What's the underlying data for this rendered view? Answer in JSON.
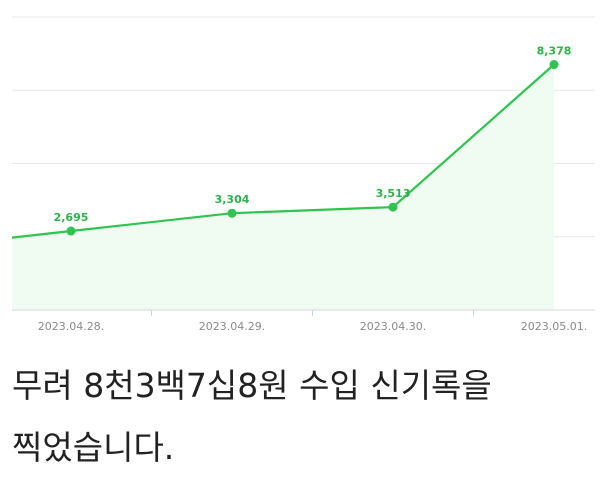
{
  "chart_data": {
    "type": "area",
    "title": "",
    "xlabel": "",
    "ylabel": "",
    "categories": [
      "2023.04.28.",
      "2023.04.29.",
      "2023.04.30.",
      "2023.05.01."
    ],
    "points": [
      {
        "x": "2023.04.28.",
        "y": 2695,
        "label": "2,695"
      },
      {
        "x": "2023.04.29.",
        "y": 3304,
        "label": "3,304"
      },
      {
        "x": "2023.04.30.",
        "y": 3513,
        "label": "3,513"
      },
      {
        "x": "2023.05.01.",
        "y": 8378,
        "label": "8,378"
      }
    ],
    "ylim": [
      0,
      10000
    ],
    "grid": true,
    "colors": {
      "line": "#2ec44f",
      "fill": "#f0fbf1",
      "label": "#2fb24a"
    }
  },
  "caption": "무려 8천3백7십8원 수입 신기록을 찍었습니다."
}
